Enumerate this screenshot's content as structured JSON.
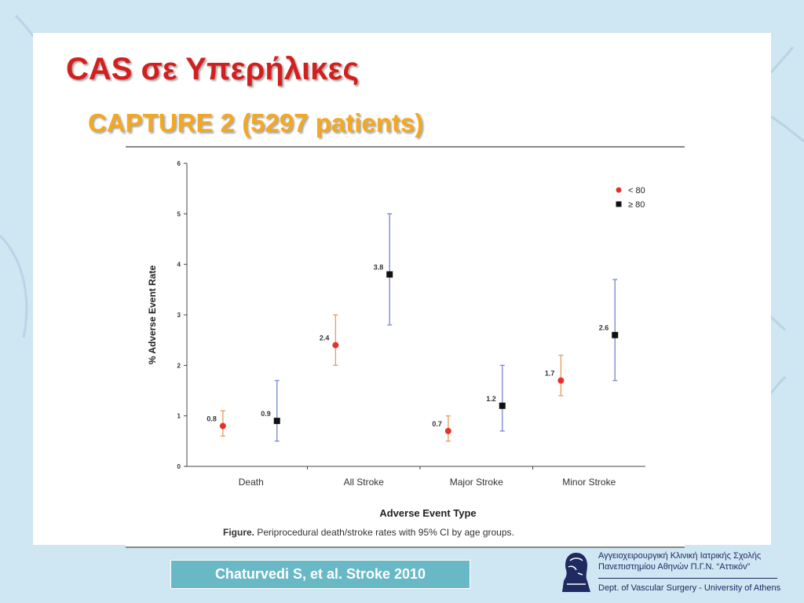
{
  "slide": {
    "title": "CAS σε Υπερήλικες",
    "subtitle": "CAPTURE 2 (5297 patients)",
    "citation": "Chaturvedi S, et al. Stroke 2010",
    "affiliation": {
      "line1": "Αγγειοχειρουργική Κλινική Ιατρικής Σχολής",
      "line2": "Πανεπιστημίου Αθηνών Π.Γ.Ν. “Αττικόν”",
      "line3": "Dept. of Vascular Surgery - University of Athens",
      "logo_icon": "bust-logo-icon"
    }
  },
  "chart_data": {
    "type": "scatter",
    "categories": [
      "Death",
      "All Stroke",
      "Major Stroke",
      "Minor Stroke"
    ],
    "ylabel": "% Adverse Event Rate",
    "xlabel": "Adverse Event Type",
    "caption_bold": "Figure.",
    "caption": "Periprocedural death/stroke rates with 95% CI by age groups.",
    "ylim": [
      0,
      6
    ],
    "yticks": [
      "0",
      "1",
      "2",
      "3",
      "4",
      "5",
      "6"
    ],
    "legend_position": "top-right",
    "series": [
      {
        "name": "< 80",
        "marker": "circle",
        "color": "#e8302a",
        "errorbar_color": "#e8a06a",
        "values": [
          0.8,
          2.4,
          0.7,
          1.7
        ],
        "labels": [
          "0.8",
          "2.4",
          "0.7",
          "1.7"
        ],
        "ci_low": [
          0.6,
          2.0,
          0.5,
          1.4
        ],
        "ci_high": [
          1.1,
          3.0,
          1.0,
          2.2
        ]
      },
      {
        "name": "≥ 80",
        "marker": "square",
        "color": "#111111",
        "errorbar_color": "#7d8fcf",
        "values": [
          0.9,
          3.8,
          1.2,
          2.6
        ],
        "labels": [
          "0.9",
          "3.8",
          "1.2",
          "2.6"
        ],
        "ci_low": [
          0.5,
          2.8,
          0.7,
          1.7
        ],
        "ci_high": [
          1.7,
          5.0,
          2.0,
          3.7
        ]
      }
    ]
  }
}
